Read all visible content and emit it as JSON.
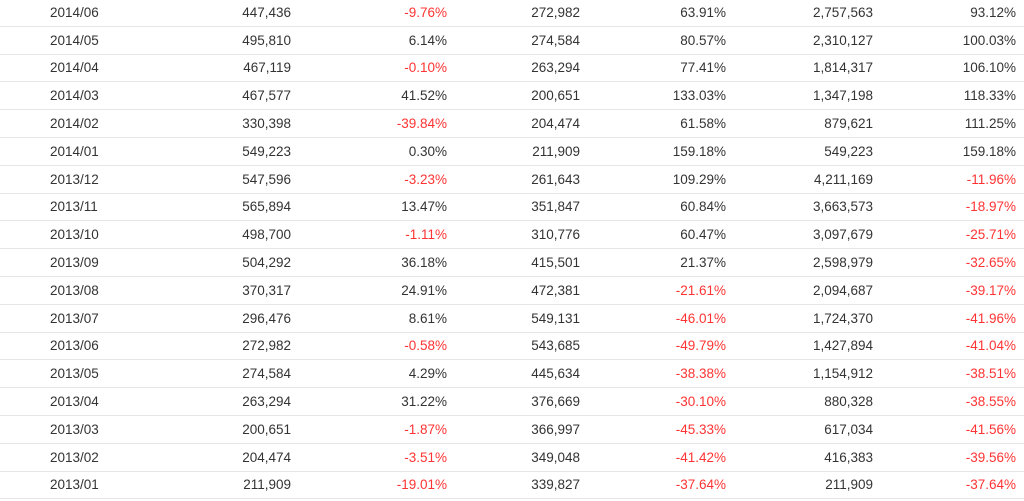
{
  "colors": {
    "text": "#333333",
    "negative": "#ff3333",
    "row_border": "#e6e6e6"
  },
  "rows": [
    [
      "2014/06",
      "447,436",
      "-9.76%",
      "272,982",
      "63.91%",
      "2,757,563",
      "93.12%"
    ],
    [
      "2014/05",
      "495,810",
      "6.14%",
      "274,584",
      "80.57%",
      "2,310,127",
      "100.03%"
    ],
    [
      "2014/04",
      "467,119",
      "-0.10%",
      "263,294",
      "77.41%",
      "1,814,317",
      "106.10%"
    ],
    [
      "2014/03",
      "467,577",
      "41.52%",
      "200,651",
      "133.03%",
      "1,347,198",
      "118.33%"
    ],
    [
      "2014/02",
      "330,398",
      "-39.84%",
      "204,474",
      "61.58%",
      "879,621",
      "111.25%"
    ],
    [
      "2014/01",
      "549,223",
      "0.30%",
      "211,909",
      "159.18%",
      "549,223",
      "159.18%"
    ],
    [
      "2013/12",
      "547,596",
      "-3.23%",
      "261,643",
      "109.29%",
      "4,211,169",
      "-11.96%"
    ],
    [
      "2013/11",
      "565,894",
      "13.47%",
      "351,847",
      "60.84%",
      "3,663,573",
      "-18.97%"
    ],
    [
      "2013/10",
      "498,700",
      "-1.11%",
      "310,776",
      "60.47%",
      "3,097,679",
      "-25.71%"
    ],
    [
      "2013/09",
      "504,292",
      "36.18%",
      "415,501",
      "21.37%",
      "2,598,979",
      "-32.65%"
    ],
    [
      "2013/08",
      "370,317",
      "24.91%",
      "472,381",
      "-21.61%",
      "2,094,687",
      "-39.17%"
    ],
    [
      "2013/07",
      "296,476",
      "8.61%",
      "549,131",
      "-46.01%",
      "1,724,370",
      "-41.96%"
    ],
    [
      "2013/06",
      "272,982",
      "-0.58%",
      "543,685",
      "-49.79%",
      "1,427,894",
      "-41.04%"
    ],
    [
      "2013/05",
      "274,584",
      "4.29%",
      "445,634",
      "-38.38%",
      "1,154,912",
      "-38.51%"
    ],
    [
      "2013/04",
      "263,294",
      "31.22%",
      "376,669",
      "-30.10%",
      "880,328",
      "-38.55%"
    ],
    [
      "2013/03",
      "200,651",
      "-1.87%",
      "366,997",
      "-45.33%",
      "617,034",
      "-41.56%"
    ],
    [
      "2013/02",
      "204,474",
      "-3.51%",
      "349,048",
      "-41.42%",
      "416,383",
      "-39.56%"
    ],
    [
      "2013/01",
      "211,909",
      "-19.01%",
      "339,827",
      "-37.64%",
      "211,909",
      "-37.64%"
    ]
  ]
}
